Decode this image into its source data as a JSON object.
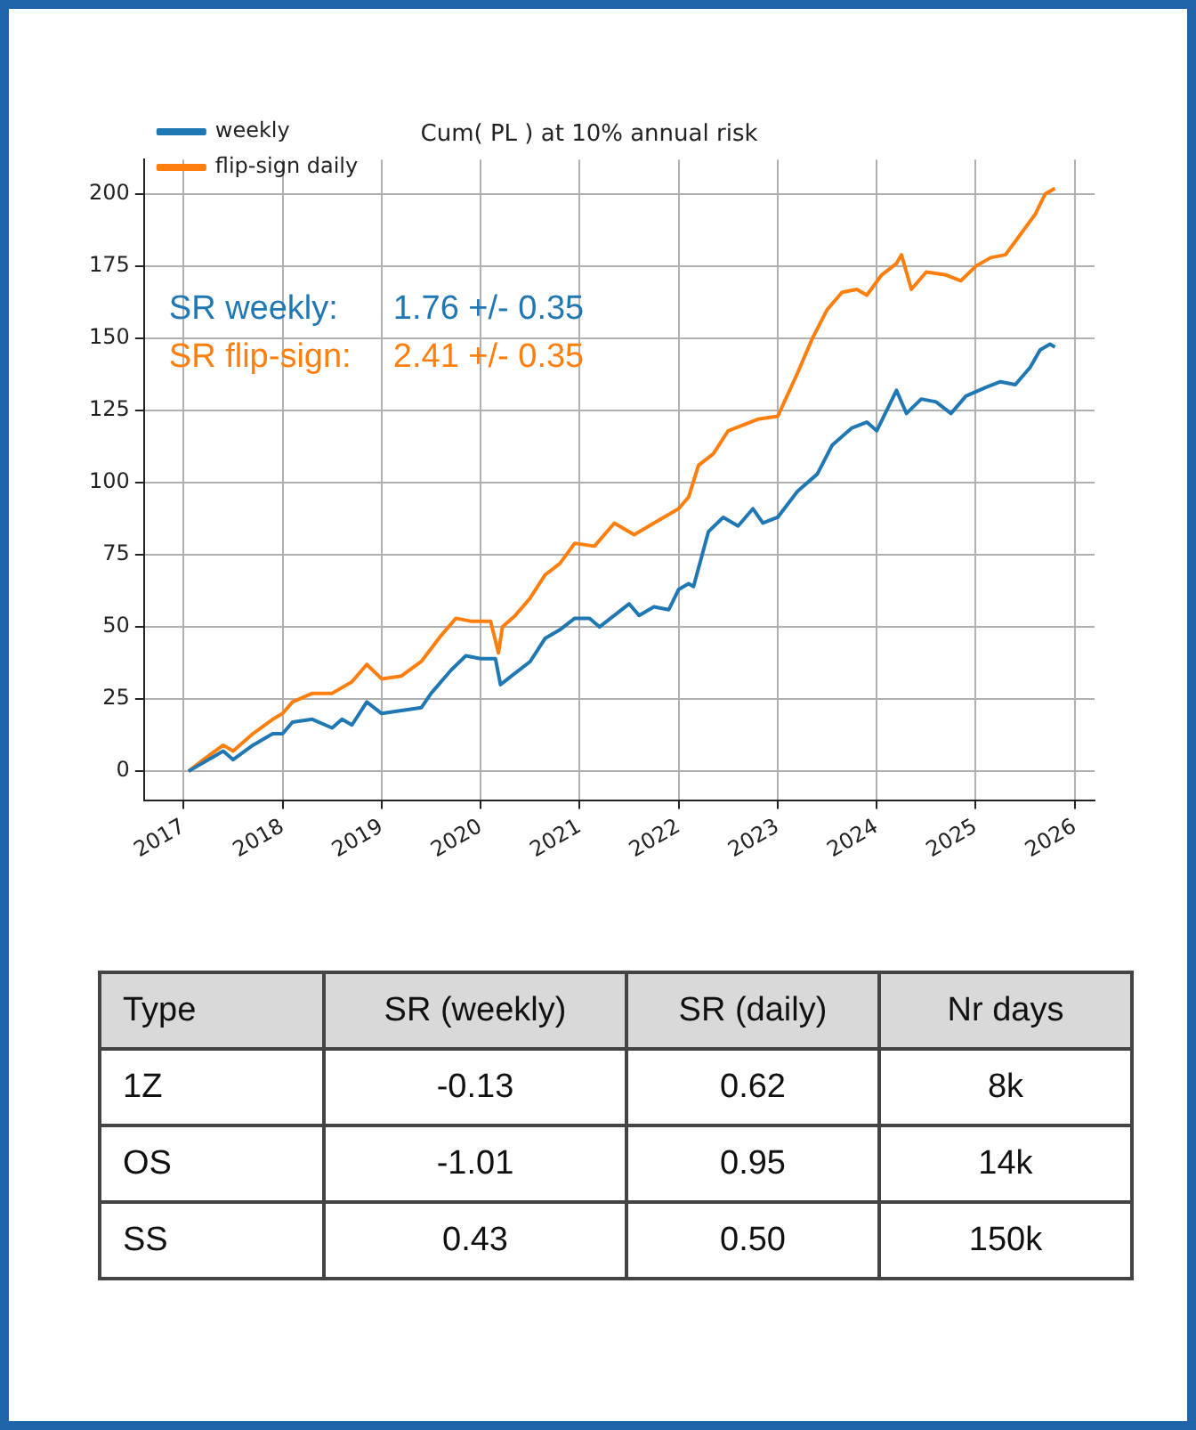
{
  "chart_data": [
    {
      "type": "line",
      "title": "Cum( PL ) at 10% annual risk",
      "xlim": [
        2016.6,
        2026.2
      ],
      "xticks": [
        2017,
        2018,
        2019,
        2020,
        2021,
        2022,
        2023,
        2024,
        2025,
        2026
      ],
      "ylim": [
        -10,
        212
      ],
      "yticks": [
        0,
        25,
        50,
        75,
        100,
        125,
        150,
        175,
        200
      ],
      "grid": true,
      "legend": "top left",
      "marker": "none",
      "line_style": "solid",
      "annotations": [
        "SR weekly:      1.76 +/- 0.35",
        "SR flip-sign:    2.41 +/- 0.35"
      ],
      "series": [
        {
          "name": "weekly",
          "color": "#1f77b4",
          "x": [
            2017.05,
            2017.3,
            2017.4,
            2017.5,
            2017.7,
            2017.9,
            2018.0,
            2018.1,
            2018.3,
            2018.5,
            2018.6,
            2018.7,
            2018.85,
            2019.0,
            2019.2,
            2019.4,
            2019.5,
            2019.7,
            2019.85,
            2020.0,
            2020.15,
            2020.2,
            2020.35,
            2020.5,
            2020.65,
            2020.8,
            2020.95,
            2021.1,
            2021.2,
            2021.35,
            2021.5,
            2021.6,
            2021.75,
            2021.9,
            2022.0,
            2022.1,
            2022.15,
            2022.3,
            2022.45,
            2022.6,
            2022.75,
            2022.85,
            2023.0,
            2023.2,
            2023.4,
            2023.55,
            2023.75,
            2023.9,
            2024.0,
            2024.1,
            2024.2,
            2024.3,
            2024.45,
            2024.6,
            2024.75,
            2024.9,
            2025.1,
            2025.25,
            2025.4,
            2025.55,
            2025.65,
            2025.75,
            2025.8
          ],
          "values": [
            0,
            5,
            7,
            4,
            9,
            13,
            13,
            17,
            18,
            15,
            18,
            16,
            24,
            20,
            21,
            22,
            27,
            35,
            40,
            39,
            39,
            30,
            34,
            38,
            46,
            49,
            53,
            53,
            50,
            54,
            58,
            54,
            57,
            56,
            63,
            65,
            64,
            83,
            88,
            85,
            91,
            86,
            88,
            97,
            103,
            113,
            119,
            121,
            118,
            125,
            132,
            124,
            129,
            128,
            124,
            130,
            133,
            135,
            134,
            140,
            146,
            148,
            147
          ]
        },
        {
          "name": "flip-sign daily",
          "color": "#ff7f0e",
          "x": [
            2017.05,
            2017.2,
            2017.4,
            2017.5,
            2017.7,
            2017.9,
            2018.0,
            2018.1,
            2018.3,
            2018.5,
            2018.7,
            2018.85,
            2019.0,
            2019.2,
            2019.4,
            2019.6,
            2019.75,
            2019.9,
            2020.1,
            2020.18,
            2020.22,
            2020.35,
            2020.5,
            2020.65,
            2020.8,
            2020.95,
            2021.15,
            2021.3,
            2021.35,
            2021.55,
            2021.7,
            2021.85,
            2022.0,
            2022.1,
            2022.2,
            2022.35,
            2022.5,
            2022.8,
            2023.0,
            2023.2,
            2023.35,
            2023.5,
            2023.65,
            2023.8,
            2023.9,
            2024.05,
            2024.2,
            2024.25,
            2024.35,
            2024.5,
            2024.7,
            2024.85,
            2025.0,
            2025.15,
            2025.3,
            2025.45,
            2025.6,
            2025.7,
            2025.8
          ],
          "values": [
            0,
            4,
            9,
            7,
            13,
            18,
            20,
            24,
            27,
            27,
            31,
            37,
            32,
            33,
            38,
            47,
            53,
            52,
            52,
            41,
            50,
            54,
            60,
            68,
            72,
            79,
            78,
            84,
            86,
            82,
            85,
            88,
            91,
            95,
            106,
            110,
            118,
            122,
            123,
            138,
            150,
            160,
            166,
            167,
            165,
            172,
            176,
            179,
            167,
            173,
            172,
            170,
            175,
            178,
            179,
            186,
            193,
            200,
            202
          ]
        }
      ]
    },
    {
      "type": "other",
      "annotations": [
        "Type",
        "SR (weekly)",
        "SR (daily)",
        "Nr days",
        "1Z",
        "-0.13",
        "0.62",
        "8k",
        "OS",
        "-1.01",
        "0.95",
        "14k",
        "SS",
        "0.43",
        "0.50",
        "150k"
      ]
    }
  ]
}
